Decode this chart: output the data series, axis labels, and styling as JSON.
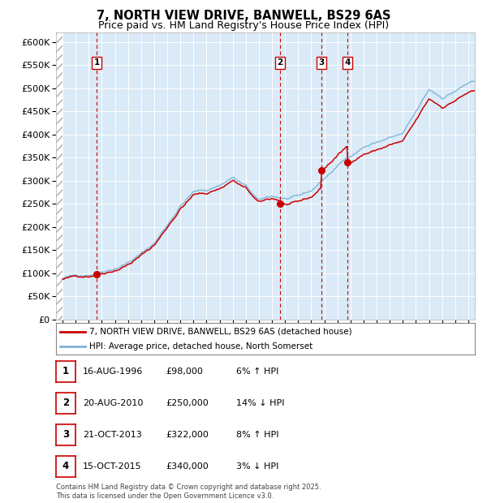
{
  "title": "7, NORTH VIEW DRIVE, BANWELL, BS29 6AS",
  "subtitle": "Price paid vs. HM Land Registry's House Price Index (HPI)",
  "xlim": [
    1993.5,
    2025.5
  ],
  "ylim": [
    0,
    620000
  ],
  "yticks": [
    0,
    50000,
    100000,
    150000,
    200000,
    250000,
    300000,
    350000,
    400000,
    450000,
    500000,
    550000,
    600000
  ],
  "bg_color": "#daeaf7",
  "grid_color": "#ffffff",
  "hpi_color": "#7fb3d8",
  "price_color": "#cc0000",
  "vline_color": "#cc0000",
  "hpi_base": {
    "1994.0": 88000,
    "1995.0": 93000,
    "1996.0": 98000,
    "1997.0": 108000,
    "1998.0": 118000,
    "1999.0": 132000,
    "2000.0": 150000,
    "2001.0": 172000,
    "2002.0": 212000,
    "2003.0": 255000,
    "2004.0": 285000,
    "2005.0": 288000,
    "2006.0": 300000,
    "2007.0": 318000,
    "2008.0": 297000,
    "2009.0": 263000,
    "2010.0": 272000,
    "2011.0": 267000,
    "2012.0": 267000,
    "2013.0": 278000,
    "2014.0": 305000,
    "2015.0": 332000,
    "2016.0": 355000,
    "2017.0": 376000,
    "2018.0": 386000,
    "2019.0": 396000,
    "2020.0": 402000,
    "2021.0": 445000,
    "2022.0": 492000,
    "2023.0": 476000,
    "2024.0": 492000,
    "2025.0": 508000
  },
  "sales": [
    {
      "num": 1,
      "date_year": 1996.62,
      "price": 98000
    },
    {
      "num": 2,
      "date_year": 2010.63,
      "price": 250000
    },
    {
      "num": 3,
      "date_year": 2013.8,
      "price": 322000
    },
    {
      "num": 4,
      "date_year": 2015.79,
      "price": 340000
    }
  ],
  "legend_entries": [
    {
      "label": "7, NORTH VIEW DRIVE, BANWELL, BS29 6AS (detached house)",
      "color": "#cc0000"
    },
    {
      "label": "HPI: Average price, detached house, North Somerset",
      "color": "#7fb3d8"
    }
  ],
  "table_rows": [
    {
      "num": 1,
      "date": "16-AUG-1996",
      "price": "£98,000",
      "hpi": "6% ↑ HPI"
    },
    {
      "num": 2,
      "date": "20-AUG-2010",
      "price": "£250,000",
      "hpi": "14% ↓ HPI"
    },
    {
      "num": 3,
      "date": "21-OCT-2013",
      "price": "£322,000",
      "hpi": "8% ↑ HPI"
    },
    {
      "num": 4,
      "date": "15-OCT-2015",
      "price": "£340,000",
      "hpi": "3% ↓ HPI"
    }
  ],
  "footnote": "Contains HM Land Registry data © Crown copyright and database right 2025.\nThis data is licensed under the Open Government Licence v3.0."
}
